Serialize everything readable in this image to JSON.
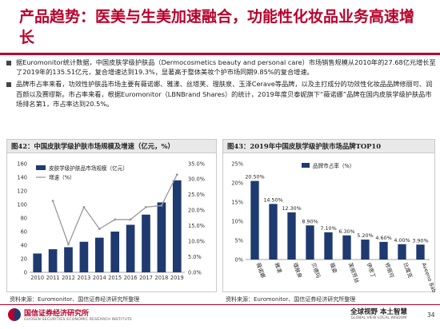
{
  "header": {
    "title": "产品趋势：医美与生美加速融合，功能性化妆品业务高速增长"
  },
  "bullets": [
    "据Euromonitor统计数据，中国皮肤学级护肤品（Dermocosmetics beauty and personal care）市场销售规模从2010年的27.68亿元增长至了2019年的135.51亿元，复合增速达到19.3%，显著高于整体美妆个护市场同期9.85%的复合增速。",
    "品牌市占率来看，功效性护肤品市场主要有薇诺娜、雅漾、丝塔芙、理肤泉、玉泽Cerave等品牌，以及主打成分的功效性化妆品品牌修丽可、润百颜以及赛缪斯。市占率来看，根据Euromonitor（LBNBrand Shares）的统计，2019年度贝泰妮旗下“薇诺娜”品牌在国内皮肤学级护肤品市场排名第1，市占率达到20.5%。"
  ],
  "figures": {
    "left_title": "图42：中国皮肤学级护肤市场规模及增速（亿元，%）",
    "right_title": "图43：2019年中国皮肤学级护肤市场品牌TOP10"
  },
  "sources": {
    "left": "资料来源：Euromonitor、国信证券经济研究所整理",
    "right": "资料来源：Euromonitor、国信证券经济研究所整理"
  },
  "footer": {
    "logo_cn": "国信证券经济研究所",
    "logo_en": "GUOSEN SECURITIES ECONOMIC RESEARCH INSTITUTE",
    "slogan_cn": "全球视野 本土智慧",
    "slogan_en": "GLOBAL VIEW   LOCAL WISDOM",
    "page": "34"
  },
  "colors": {
    "accent": "#b8002b",
    "bar": "#1f3a70",
    "line": "#9a9a9a"
  },
  "chart_data": [
    {
      "type": "bar",
      "categories": [
        "2010",
        "2011",
        "2012",
        "2013",
        "2014",
        "2015",
        "2016",
        "2017",
        "2018",
        "2019"
      ],
      "series": [
        {
          "name": "皮肤学级护肤品市场规模（亿元）",
          "type": "bar",
          "axis": "left",
          "values": [
            27.68,
            34,
            37,
            45,
            51,
            60,
            70,
            85,
            103,
            135.51
          ]
        },
        {
          "name": "增速（%）",
          "type": "line",
          "axis": "right",
          "values": [
            null,
            23.0,
            9.0,
            21.0,
            14.0,
            17.0,
            17.0,
            21.0,
            21.5,
            31.5
          ]
        }
      ],
      "ylim_left": [
        0,
        160
      ],
      "yticks_left": [
        "0",
        "20",
        "40",
        "60",
        "80",
        "100",
        "120",
        "140",
        "160"
      ],
      "ylim_right": [
        0,
        35
      ],
      "yticks_right": [
        "0.0%",
        "5.0%",
        "10.0%",
        "15.0%",
        "20.0%",
        "25.0%",
        "30.0%",
        "35.0%"
      ],
      "grid": false,
      "legend": "top-left"
    },
    {
      "type": "bar",
      "categories": [
        "薇诺娜",
        "雅漾",
        "理肤泉",
        "贝德玛",
        "薇姿",
        "芙丽芳丝",
        "伊思丁",
        "修丽可",
        "比度克",
        "Aveeno Baby"
      ],
      "series": [
        {
          "name": "品牌市占率（%）",
          "values": [
            20.5,
            14.5,
            12.3,
            8.9,
            7.1,
            6.3,
            5.2,
            4.6,
            4.0,
            3.9
          ],
          "labels": [
            "20.50%",
            "14.50%",
            "12.30%",
            "8.90%",
            "7.10%",
            "6.30%",
            "5.20%",
            "4.60%",
            "4.00%",
            "3.90%"
          ]
        }
      ],
      "ylim": [
        0,
        25
      ],
      "yticks": [
        "0%",
        "5%",
        "10%",
        "15%",
        "20%",
        "25%"
      ],
      "grid": false,
      "legend": "top-left"
    }
  ]
}
